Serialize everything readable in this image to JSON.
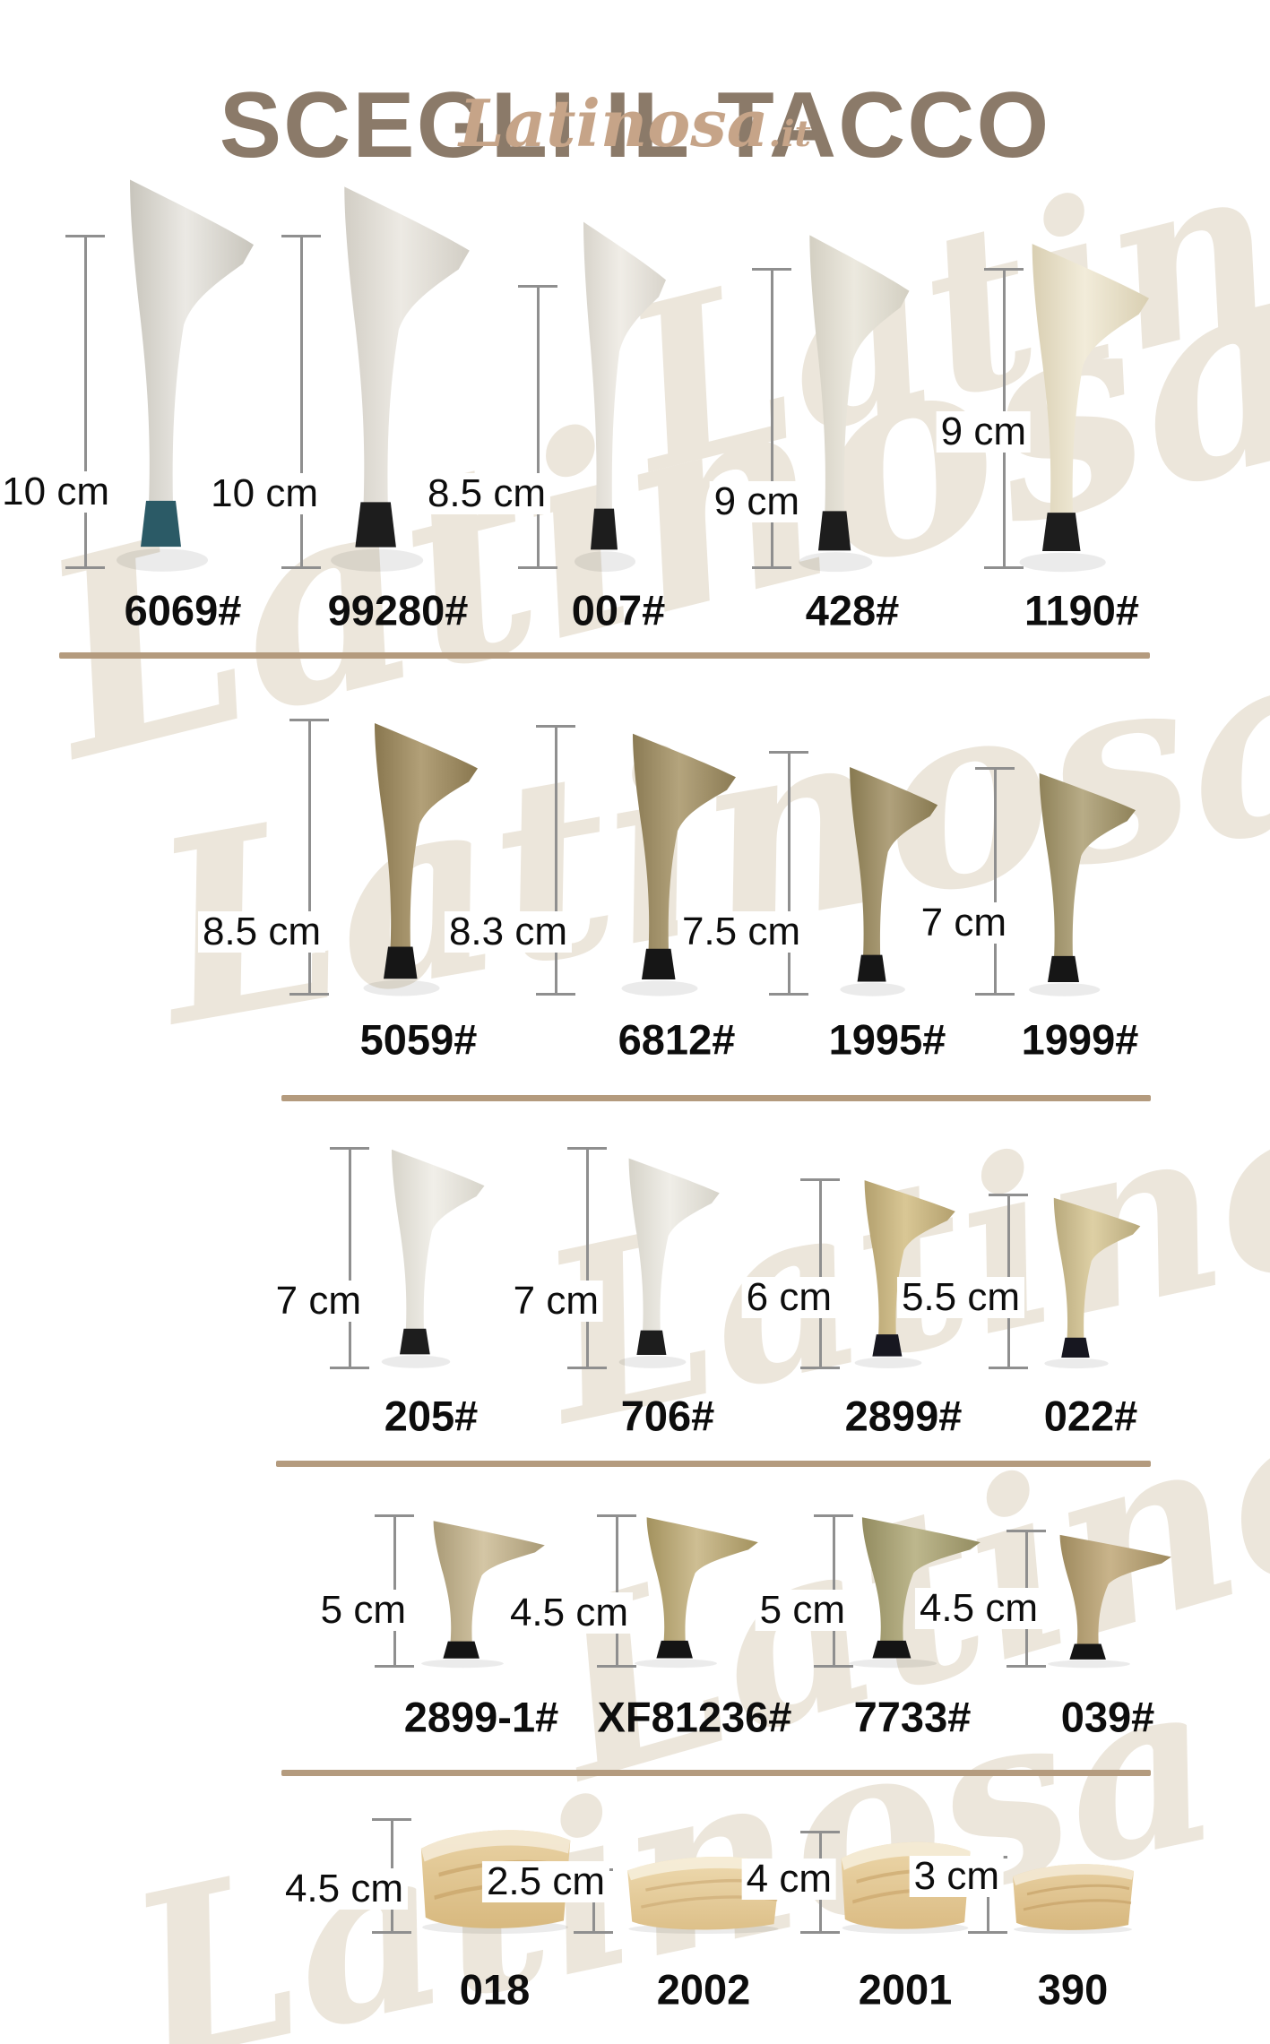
{
  "header": {
    "title": "SCEGLI IL TACCO",
    "title_color": "#8b7a69",
    "brand": "Latinosa",
    "brand_suffix": ".it",
    "brand_color": "#c6a488"
  },
  "watermark_text": "Latinosa",
  "divider_color": "#b49b7e",
  "measure_color": "#8f8f8f",
  "rows": [
    {
      "heels": [
        {
          "model": "6069#",
          "size": "10 cm",
          "shape": "stiletto",
          "body": "#ebe9e4",
          "shade": "#c8c5bc",
          "cap": "#2b5a66"
        },
        {
          "model": "99280#",
          "size": "10 cm",
          "shape": "stiletto",
          "body": "#edeae4",
          "shade": "#d2cec5",
          "cap": "#1d1d1d"
        },
        {
          "model": "007#",
          "size": "8.5 cm",
          "shape": "stiletto",
          "body": "#f0ede7",
          "shade": "#d8d4cb",
          "cap": "#1d1d1d"
        },
        {
          "model": "428#",
          "size": "9 cm",
          "shape": "stiletto",
          "body": "#ece9df",
          "shade": "#d3cfc2",
          "cap": "#1d1d1d"
        },
        {
          "model": "1190#",
          "size": "9 cm",
          "shape": "stiletto",
          "body": "#f2ecda",
          "shade": "#d9cfb2",
          "cap": "#1d1d1d"
        }
      ]
    },
    {
      "heels": [
        {
          "model": "5059#",
          "size": "8.5 cm",
          "shape": "stiletto",
          "body": "#b2a078",
          "shade": "#89774f",
          "cap": "#161616"
        },
        {
          "model": "6812#",
          "size": "8.3 cm",
          "shape": "stiletto",
          "body": "#b4a47d",
          "shade": "#8b7b54",
          "cap": "#161616"
        },
        {
          "model": "1995#",
          "size": "7.5 cm",
          "shape": "stiletto",
          "body": "#b0a17c",
          "shade": "#877950",
          "cap": "#161616"
        },
        {
          "model": "1999#",
          "size": "7 cm",
          "shape": "stiletto",
          "body": "#b8ac87",
          "shade": "#8f8259",
          "cap": "#161616"
        }
      ]
    },
    {
      "heels": [
        {
          "model": "205#",
          "size": "7 cm",
          "shape": "stiletto",
          "body": "#f1efe9",
          "shade": "#d7d4ca",
          "cap": "#1d1d1d"
        },
        {
          "model": "706#",
          "size": "7 cm",
          "shape": "stiletto",
          "body": "#f0eee8",
          "shade": "#d6d3c9",
          "cap": "#1d1d1d"
        },
        {
          "model": "2899#",
          "size": "6 cm",
          "shape": "stiletto",
          "body": "#d9c795",
          "shade": "#b3a06e",
          "cap": "#171720"
        },
        {
          "model": "022#",
          "size": "5.5 cm",
          "shape": "stiletto",
          "body": "#ded0a5",
          "shade": "#b8a97c",
          "cap": "#171720"
        }
      ]
    },
    {
      "heels": [
        {
          "model": "2899-1#",
          "size": "5 cm",
          "shape": "stiletto",
          "body": "#d4c6a5",
          "shade": "#a99a76",
          "cap": "#141414"
        },
        {
          "model": "XF81236#",
          "size": "4.5 cm",
          "shape": "stiletto",
          "body": "#cebe93",
          "shade": "#a3925e",
          "cap": "#141414"
        },
        {
          "model": "7733#",
          "size": "5 cm",
          "shape": "stiletto",
          "body": "#bdb78d",
          "shade": "#938c60",
          "cap": "#141414"
        },
        {
          "model": "039#",
          "size": "4.5 cm",
          "shape": "stiletto",
          "body": "#c9b48b",
          "shade": "#9e8a5e",
          "cap": "#141414"
        }
      ]
    },
    {
      "heels": [
        {
          "model": "018",
          "size": "4.5 cm",
          "shape": "wedge",
          "body": "#e9d2a4",
          "shade": "#d8b97f",
          "topband": "#f4ead6",
          "grain": "#c6a166"
        },
        {
          "model": "2002",
          "size": "2.5 cm",
          "shape": "wedge",
          "body": "#eedab0",
          "shade": "#ddc089",
          "topband": "#f6eeda",
          "grain": "#cdab74"
        },
        {
          "model": "2001",
          "size": "4 cm",
          "shape": "wedge",
          "body": "#ecd6a9",
          "shade": "#dbbc84",
          "topband": "#f5ecd8",
          "grain": "#c9a56a"
        },
        {
          "model": "390",
          "size": "3 cm",
          "shape": "wedge",
          "body": "#e8d0a2",
          "shade": "#d7b77d",
          "topband": "#f3e9d4",
          "grain": "#c5a065"
        }
      ]
    }
  ]
}
